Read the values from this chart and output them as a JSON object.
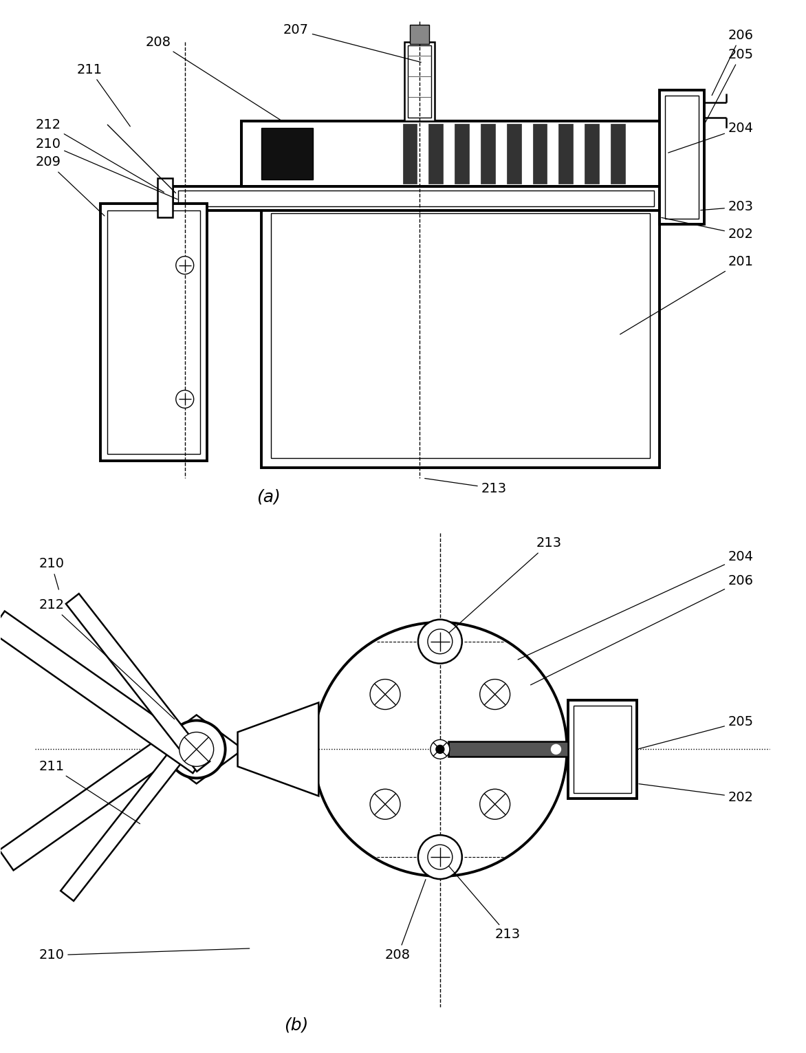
{
  "fig_width": 11.72,
  "fig_height": 15.31,
  "bg_color": "#ffffff",
  "line_color": "#000000",
  "label_fontsize": 14,
  "caption_fontsize": 18
}
